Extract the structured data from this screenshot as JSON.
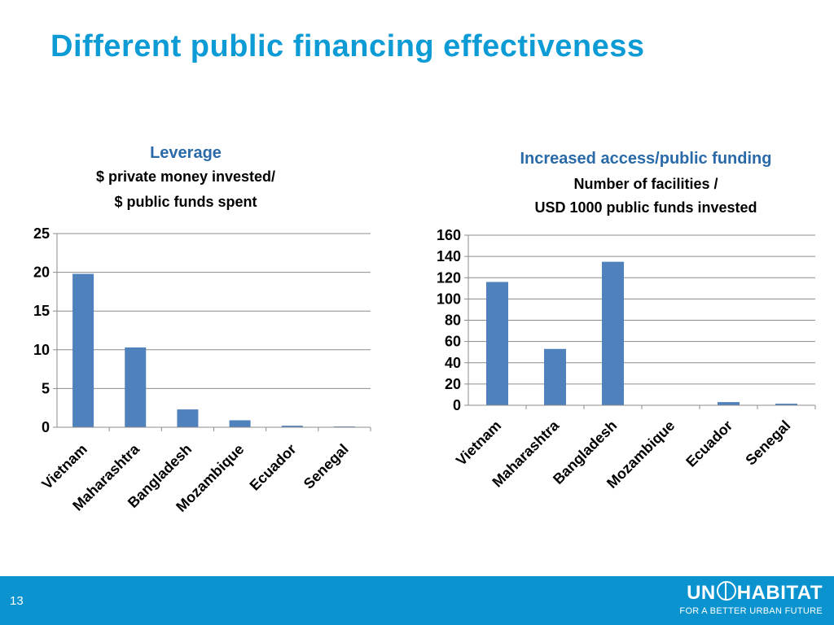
{
  "slide": {
    "title": "Different public financing effectiveness",
    "page_number": "13"
  },
  "logo": {
    "text_left": "UN",
    "text_right": "HABITAT",
    "tagline": "FOR A BETTER URBAN FUTURE"
  },
  "colors": {
    "title": "#0c9bd5",
    "bar": "#4f81bd",
    "footer": "#0a93cf",
    "heading_blue": "#2a6aa8"
  },
  "chart_data": [
    {
      "type": "bar",
      "title": "Leverage",
      "subtitle_lines": [
        "$ private money invested/",
        "$ public funds spent"
      ],
      "categories": [
        "Vietnam",
        "Maharashtra",
        "Bangladesh",
        "Mozambique",
        "Ecuador",
        "Senegal"
      ],
      "values": [
        19.8,
        10.3,
        2.3,
        0.9,
        0.2,
        0.1
      ],
      "ylim": [
        0,
        25
      ],
      "yticks": [
        0,
        5,
        10,
        15,
        20,
        25
      ],
      "grid": true,
      "legend": "none"
    },
    {
      "type": "bar",
      "title": "Increased access/public funding",
      "subtitle_lines": [
        "Number of facilities /",
        "USD 1000 public funds invested"
      ],
      "categories": [
        "Vietnam",
        "Maharashtra",
        "Bangladesh",
        "Mozambique",
        "Ecuador",
        "Senegal"
      ],
      "values": [
        116,
        53,
        135,
        0,
        3,
        1.5
      ],
      "ylim": [
        0,
        160
      ],
      "yticks": [
        0,
        20,
        40,
        60,
        80,
        100,
        120,
        140,
        160
      ],
      "grid": true,
      "legend": "none"
    }
  ]
}
